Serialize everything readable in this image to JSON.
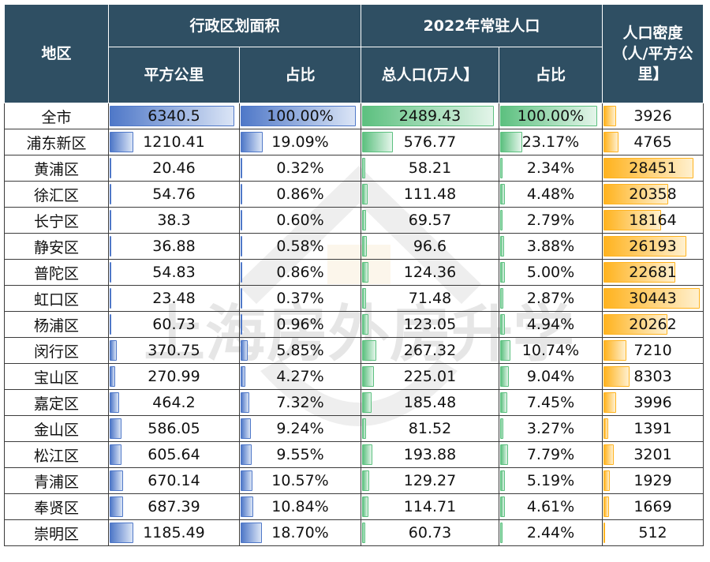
{
  "header": {
    "region": "地区",
    "area_group": "行政区划面积",
    "area_sqkm": "平方公里",
    "area_share": "占比",
    "pop_group": "2022年常驻人口",
    "pop_total": "总人口(万人】",
    "pop_share": "占比",
    "density": "人口密度（人/平方公里】"
  },
  "watermark": "上海房外房升学",
  "colors": {
    "header_bg": "#2f4f63",
    "area_bar": "#4f78c8",
    "pop_bar": "#5cc07f",
    "density_bar": "#ffb31f"
  },
  "rows": [
    {
      "region": "全市",
      "area": "6340.5",
      "area_pct": "100.00%",
      "pop": "2489.43",
      "pop_pct": "100.00%",
      "density": "3926"
    },
    {
      "region": "浦东新区",
      "area": "1210.41",
      "area_pct": "19.09%",
      "pop": "576.77",
      "pop_pct": "23.17%",
      "density": "4765"
    },
    {
      "region": "黄浦区",
      "area": "20.46",
      "area_pct": "0.32%",
      "pop": "58.21",
      "pop_pct": "2.34%",
      "density": "28451"
    },
    {
      "region": "徐汇区",
      "area": "54.76",
      "area_pct": "0.86%",
      "pop": "111.48",
      "pop_pct": "4.48%",
      "density": "20358"
    },
    {
      "region": "长宁区",
      "area": "38.3",
      "area_pct": "0.60%",
      "pop": "69.57",
      "pop_pct": "2.79%",
      "density": "18164"
    },
    {
      "region": "静安区",
      "area": "36.88",
      "area_pct": "0.58%",
      "pop": "96.6",
      "pop_pct": "3.88%",
      "density": "26193"
    },
    {
      "region": "普陀区",
      "area": "54.83",
      "area_pct": "0.86%",
      "pop": "124.36",
      "pop_pct": "5.00%",
      "density": "22681"
    },
    {
      "region": "虹口区",
      "area": "23.48",
      "area_pct": "0.37%",
      "pop": "71.48",
      "pop_pct": "2.87%",
      "density": "30443"
    },
    {
      "region": "杨浦区",
      "area": "60.73",
      "area_pct": "0.96%",
      "pop": "123.05",
      "pop_pct": "4.94%",
      "density": "20262"
    },
    {
      "region": "闵行区",
      "area": "370.75",
      "area_pct": "5.85%",
      "pop": "267.32",
      "pop_pct": "10.74%",
      "density": "7210"
    },
    {
      "region": "宝山区",
      "area": "270.99",
      "area_pct": "4.27%",
      "pop": "225.01",
      "pop_pct": "9.04%",
      "density": "8303"
    },
    {
      "region": "嘉定区",
      "area": "464.2",
      "area_pct": "7.32%",
      "pop": "185.48",
      "pop_pct": "7.45%",
      "density": "3996"
    },
    {
      "region": "金山区",
      "area": "586.05",
      "area_pct": "9.24%",
      "pop": "81.52",
      "pop_pct": "3.27%",
      "density": "1391"
    },
    {
      "region": "松江区",
      "area": "605.64",
      "area_pct": "9.55%",
      "pop": "193.88",
      "pop_pct": "7.79%",
      "density": "3201"
    },
    {
      "region": "青浦区",
      "area": "670.14",
      "area_pct": "10.57%",
      "pop": "129.27",
      "pop_pct": "5.19%",
      "density": "1929"
    },
    {
      "region": "奉贤区",
      "area": "687.39",
      "area_pct": "10.84%",
      "pop": "114.71",
      "pop_pct": "4.61%",
      "density": "1669"
    },
    {
      "region": "崇明区",
      "area": "1185.49",
      "area_pct": "18.70%",
      "pop": "60.73",
      "pop_pct": "2.44%",
      "density": "512"
    }
  ]
}
